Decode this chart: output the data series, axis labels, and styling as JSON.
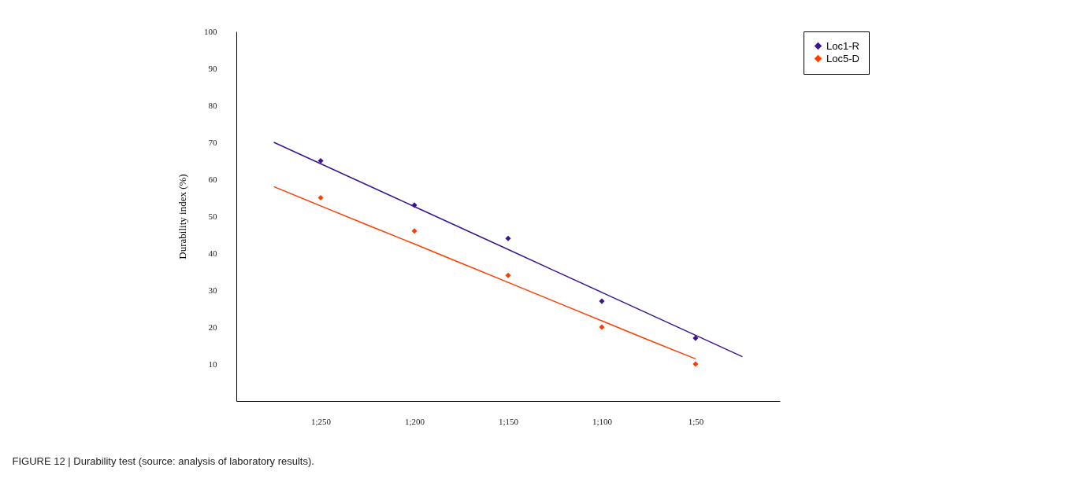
{
  "chart_data": {
    "type": "scatter",
    "ylabel": "Durability index (%)",
    "categories": [
      null,
      "1;250",
      null,
      "1;200",
      null,
      "1;150",
      null,
      "1;100",
      null,
      "1;50",
      null
    ],
    "ylim": [
      0,
      100
    ],
    "yticks": [
      10,
      20,
      30,
      40,
      50,
      60,
      70,
      80,
      90,
      100
    ],
    "series": [
      {
        "name": "Loc1-R",
        "type": "scatter",
        "marker": "diamond",
        "color": "#3b1590",
        "values": [
          null,
          65,
          null,
          53,
          null,
          44,
          null,
          27,
          null,
          17,
          null
        ]
      },
      {
        "name": "Loc5-D",
        "type": "scatter",
        "marker": "diamond",
        "color": "#ff3d00",
        "values": [
          null,
          55,
          null,
          46,
          null,
          34,
          null,
          20,
          null,
          10,
          null
        ]
      },
      {
        "type": "line",
        "marker": "none",
        "color": "#3b1590",
        "values": [
          70,
          64.2,
          58.4,
          52.6,
          46.8,
          41,
          35.2,
          29.4,
          23.6,
          17.8,
          12
        ]
      },
      {
        "type": "line",
        "marker": "none",
        "color": "#ff3d00",
        "values": [
          58,
          52.8,
          47.6,
          42.5,
          37.3,
          32.1,
          26.9,
          21.7,
          16.5,
          11.4,
          null
        ]
      }
    ],
    "grid": false,
    "legend": "right",
    "annotations": [
      "FIGURE 12 | Durability test (source: analysis of laboratory results)."
    ]
  }
}
